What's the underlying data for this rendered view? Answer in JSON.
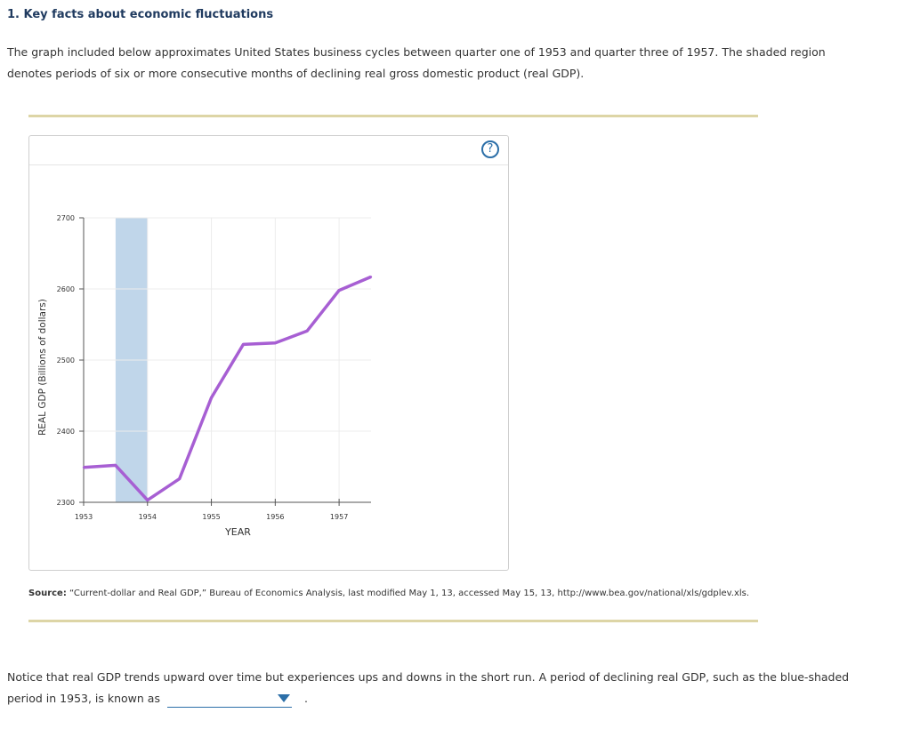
{
  "question": {
    "title": "1. Key facts about economic fluctuations",
    "intro": "The graph included below approximates United States business cycles between quarter one of 1953 and quarter three of 1957. The shaded region denotes periods of six or more consecutive months of declining real gross domestic product (real GDP).",
    "help_label": "?"
  },
  "chart_data": {
    "type": "line",
    "title": "",
    "xlabel": "YEAR",
    "ylabel": "REAL GDP (Billions of dollars)",
    "x_ticks": [
      "1953",
      "1954",
      "1955",
      "1956",
      "1957"
    ],
    "y_ticks": [
      "2300",
      "2400",
      "2500",
      "2600",
      "2700"
    ],
    "ylim": [
      2300,
      2700
    ],
    "xlim": [
      1953.0,
      1957.5
    ],
    "grid": true,
    "series": [
      {
        "color": "#a75fd3",
        "x": [
          1953.0,
          1953.5,
          1954.0,
          1954.5,
          1955.0,
          1955.5,
          1956.0,
          1956.5,
          1957.0,
          1957.5
        ],
        "y": [
          2349,
          2352,
          2303,
          2333,
          2447,
          2522,
          2524,
          2541,
          2598,
          2617
        ]
      }
    ],
    "shaded_regions": [
      {
        "x0": 1953.5,
        "x1": 1954.0,
        "color": "#c0d6ea"
      }
    ]
  },
  "source": {
    "label": "Source:",
    "text": "“Current-dollar and Real GDP,” Bureau of Economics Analysis, last modified May 1, 13, accessed May 15, 13, http://www.bea.gov/national/xls/gdplev.xls."
  },
  "notice": {
    "text": "Notice that real GDP trends upward over time but experiences ups and downs in the short run. A period of declining real GDP, such as the blue-shaded period in 1953, is known as",
    "dropdown_value": "",
    "end_punct": "."
  },
  "colors": {
    "rule": "#ddd5a6",
    "accent": "#2c6fa8",
    "title": "#1f3a5f"
  }
}
